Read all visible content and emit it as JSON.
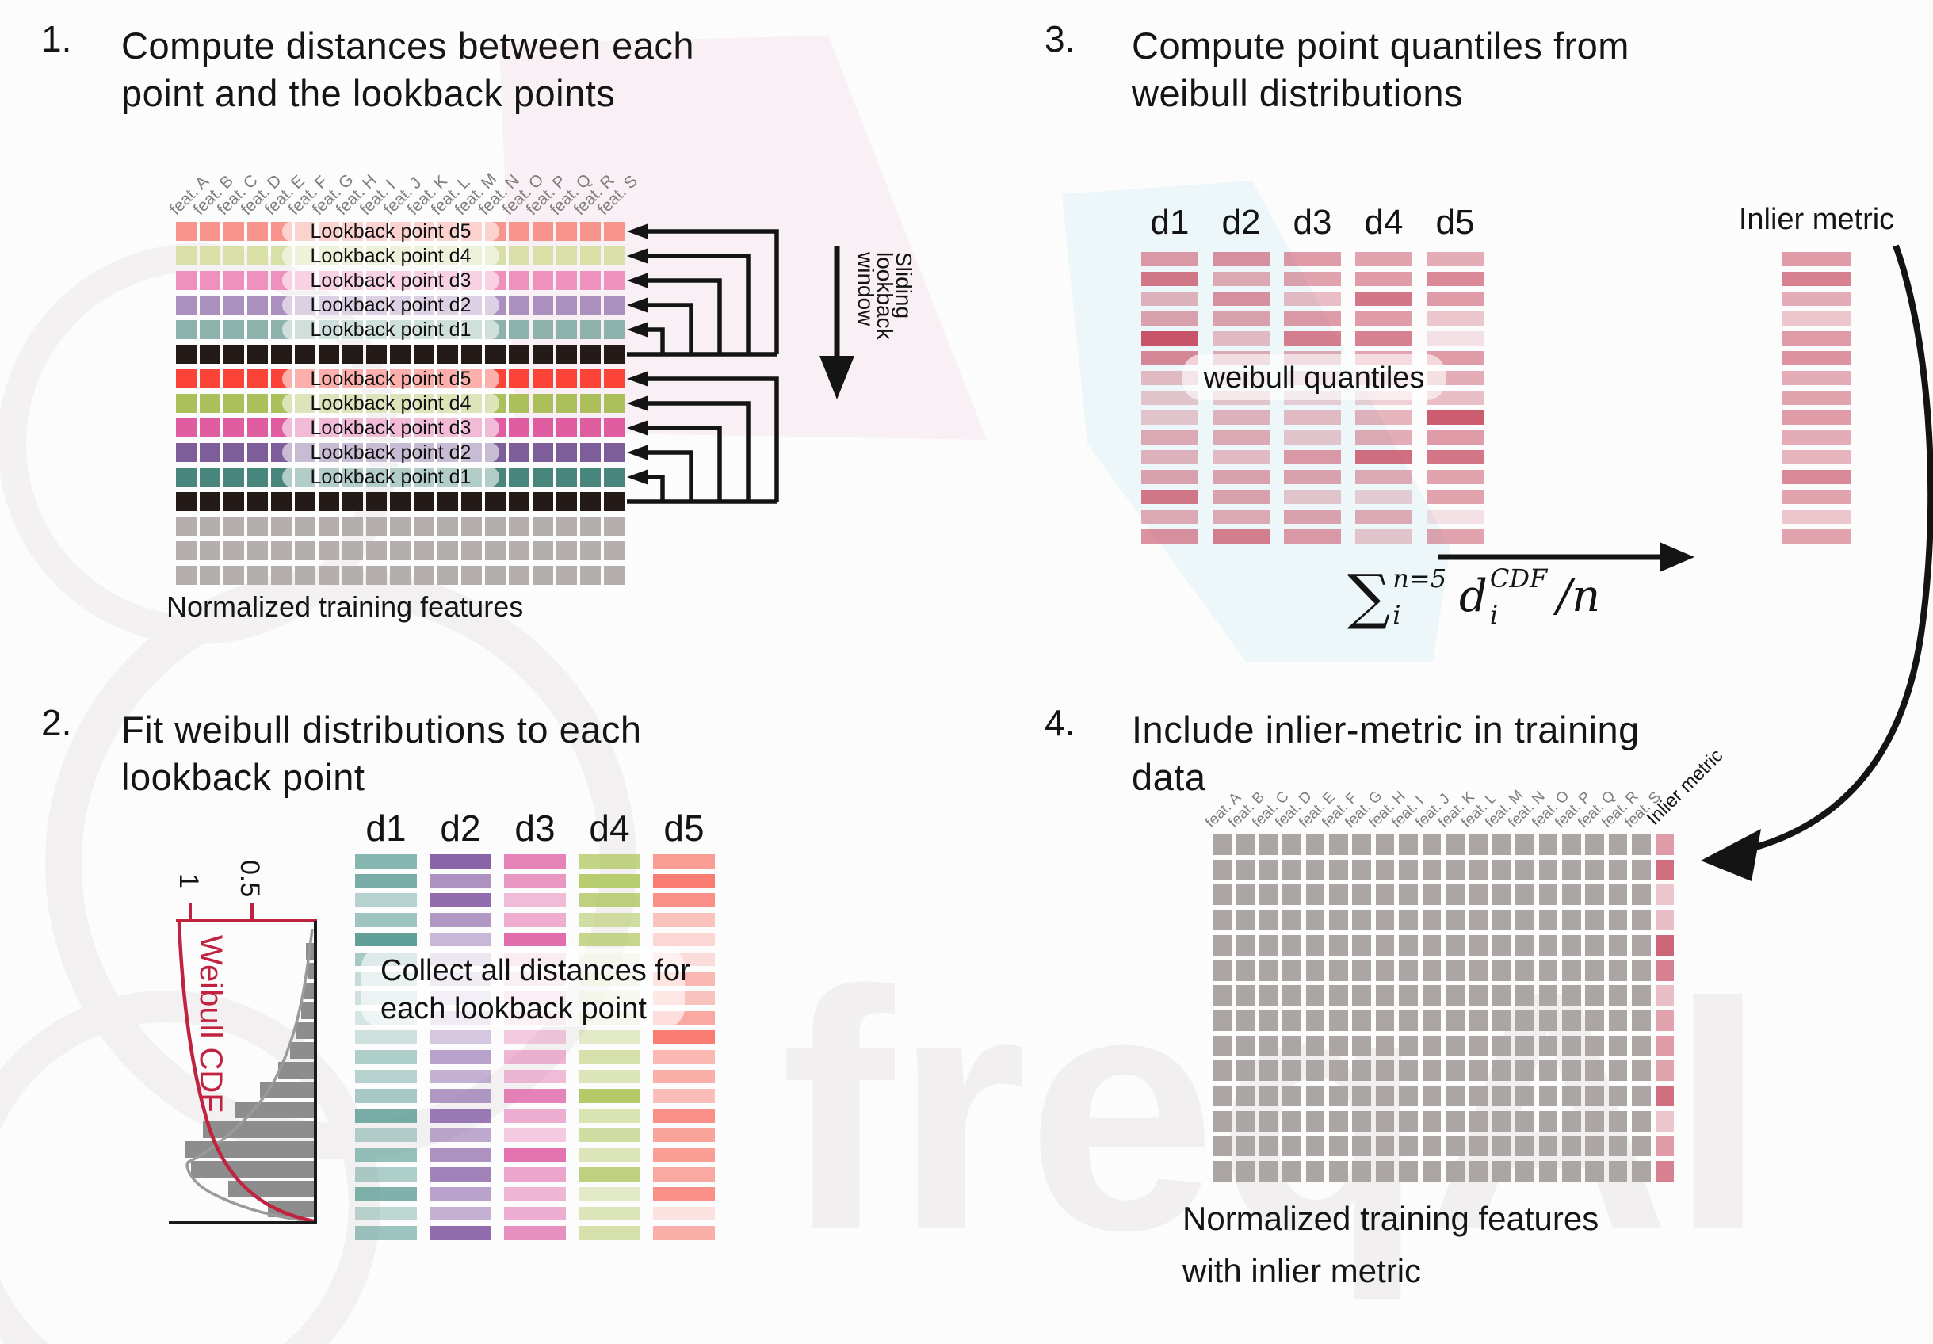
{
  "colors": {
    "p1_rows": [
      "#f7958d",
      "#d8e0a8",
      "#ee92bd",
      "#ab8fbe",
      "#8db2ab",
      "#241b18",
      "#fb4338",
      "#abc05b",
      "#de5c9f",
      "#7d5d9a",
      "#48867d",
      "#241b18",
      "#b4afad",
      "#b4afad",
      "#b4afad"
    ],
    "p4_gray": "#aba6a4",
    "crimson": "#c64b62",
    "hist_gray": "#8d8d8d",
    "cdf_red": "#c0223f",
    "arrow_black": "#141414"
  },
  "watermark": {
    "text": "freqAI"
  },
  "features": [
    "feat. A",
    "feat. B",
    "feat. C",
    "feat. D",
    "feat. E",
    "feat. F",
    "feat. G",
    "feat. H",
    "feat. I",
    "feat. J",
    "feat. K",
    "feat. L",
    "feat. M",
    "feat. N",
    "feat. O",
    "feat. P",
    "feat. Q",
    "feat. R",
    "feat. S"
  ],
  "p1": {
    "number": "1.",
    "title_line1": "Compute distances between each",
    "title_line2": "point and the lookback points",
    "row_labels": [
      "Lookback point d5",
      "Lookback point d4",
      "Lookback point d3",
      "Lookback point d2",
      "Lookback point d1"
    ],
    "sliding_lines": [
      "Sliding",
      "lookback",
      "window"
    ],
    "caption": "Normalized training features"
  },
  "p2": {
    "number": "2.",
    "title_line1": "Fit weibull distributions to each",
    "title_line2": "lookback point",
    "plot": {
      "ylabel": "Weibull CDF",
      "tick_labels": [
        "1",
        "0.5"
      ],
      "hist_bars": [
        10,
        8,
        12,
        16,
        22,
        30,
        45,
        68,
        100,
        140,
        163,
        155,
        108,
        58
      ]
    },
    "columns": [
      {
        "name": "d1",
        "color": "#5f9f97",
        "bars": [
          0.75,
          0.85,
          0.45,
          0.6,
          1,
          0.55,
          0.35,
          0.3,
          0.25,
          0.3,
          0.5,
          0.45,
          0.55,
          0.85,
          0.45,
          0.65,
          0.5,
          0.8,
          0.4,
          0.6
        ]
      },
      {
        "name": "d2",
        "color": "#8a64a8",
        "bars": [
          1,
          0.7,
          0.95,
          0.65,
          0.45,
          0.4,
          0.3,
          0.25,
          0.3,
          0.35,
          0.6,
          0.5,
          0.65,
          0.85,
          0.55,
          0.7,
          0.8,
          0.6,
          0.5,
          0.95
        ]
      },
      {
        "name": "d3",
        "color": "#e16dad",
        "bars": [
          0.85,
          0.7,
          0.45,
          0.55,
          1,
          0.35,
          0.25,
          0.3,
          0.25,
          0.35,
          0.5,
          0.45,
          0.85,
          0.55,
          0.35,
          0.95,
          0.6,
          0.5,
          0.55,
          0.75
        ]
      },
      {
        "name": "d4",
        "color": "#b4c968",
        "bars": [
          0.8,
          0.95,
          0.85,
          0.6,
          0.75,
          0.25,
          0.3,
          0.25,
          0.3,
          0.35,
          0.55,
          0.45,
          1,
          0.5,
          0.6,
          0.45,
          0.85,
          0.35,
          0.45,
          0.55
        ]
      },
      {
        "name": "d5",
        "color": "#f97d72",
        "bars": [
          0.75,
          1,
          0.85,
          0.45,
          0.3,
          0.25,
          0.55,
          0.45,
          0.65,
          1,
          0.55,
          0.6,
          0.5,
          0.85,
          0.7,
          0.75,
          0.65,
          0.85,
          0.2,
          0.6
        ]
      }
    ],
    "overlay_line1": "Collect all distances for",
    "overlay_line2": "each lookback point"
  },
  "p3": {
    "number": "3.",
    "title_line1": "Compute point quantiles from",
    "title_line2": "weibull distributions",
    "columns": [
      {
        "name": "d1",
        "bars": [
          0.55,
          0.75,
          0.4,
          0.5,
          0.95,
          0.65,
          0.35,
          0.3,
          0.3,
          0.45,
          0.4,
          0.5,
          0.75,
          0.45,
          0.6
        ]
      },
      {
        "name": "d2",
        "bars": [
          0.6,
          0.45,
          0.6,
          0.5,
          0.35,
          0.45,
          0.25,
          0.3,
          0.4,
          0.45,
          0.35,
          0.5,
          0.5,
          0.45,
          0.7
        ]
      },
      {
        "name": "d3",
        "bars": [
          0.55,
          0.5,
          0.35,
          0.55,
          0.7,
          0.45,
          0.3,
          0.25,
          0.35,
          0.3,
          0.55,
          0.5,
          0.3,
          0.5,
          0.55
        ]
      },
      {
        "name": "d4",
        "bars": [
          0.5,
          0.55,
          0.75,
          0.55,
          0.7,
          0.5,
          0.3,
          0.25,
          0.4,
          0.45,
          0.8,
          0.45,
          0.25,
          0.45,
          0.3
        ]
      },
      {
        "name": "d5",
        "bars": [
          0.45,
          0.65,
          0.55,
          0.3,
          0.15,
          0.55,
          0.45,
          0.35,
          0.9,
          0.55,
          0.75,
          0.5,
          0.5,
          0.15,
          0.5
        ]
      }
    ],
    "overlay": "weibull quantiles",
    "inlier": {
      "label": "Inlier metric",
      "bars": [
        0.55,
        0.7,
        0.45,
        0.3,
        0.55,
        0.6,
        0.45,
        0.5,
        0.55,
        0.45,
        0.4,
        0.65,
        0.5,
        0.3,
        0.5
      ]
    },
    "formula": {
      "sum": "∑",
      "sum_sup": "n=5",
      "sum_sub": "i",
      "var": "d",
      "var_sup": "CDF",
      "var_sub": "i",
      "tail": "/n"
    }
  },
  "p4": {
    "number": "4.",
    "title_line1": "Include inlier-metric in training",
    "title_line2": "data",
    "inlier_header": "Inlier metric",
    "inlier_bars": [
      0.55,
      0.8,
      0.3,
      0.35,
      0.85,
      0.7,
      0.35,
      0.5,
      0.55,
      0.5,
      0.8,
      0.3,
      0.55,
      0.7
    ],
    "caption_line1": "Normalized training features",
    "caption_line2": "with inlier metric"
  }
}
